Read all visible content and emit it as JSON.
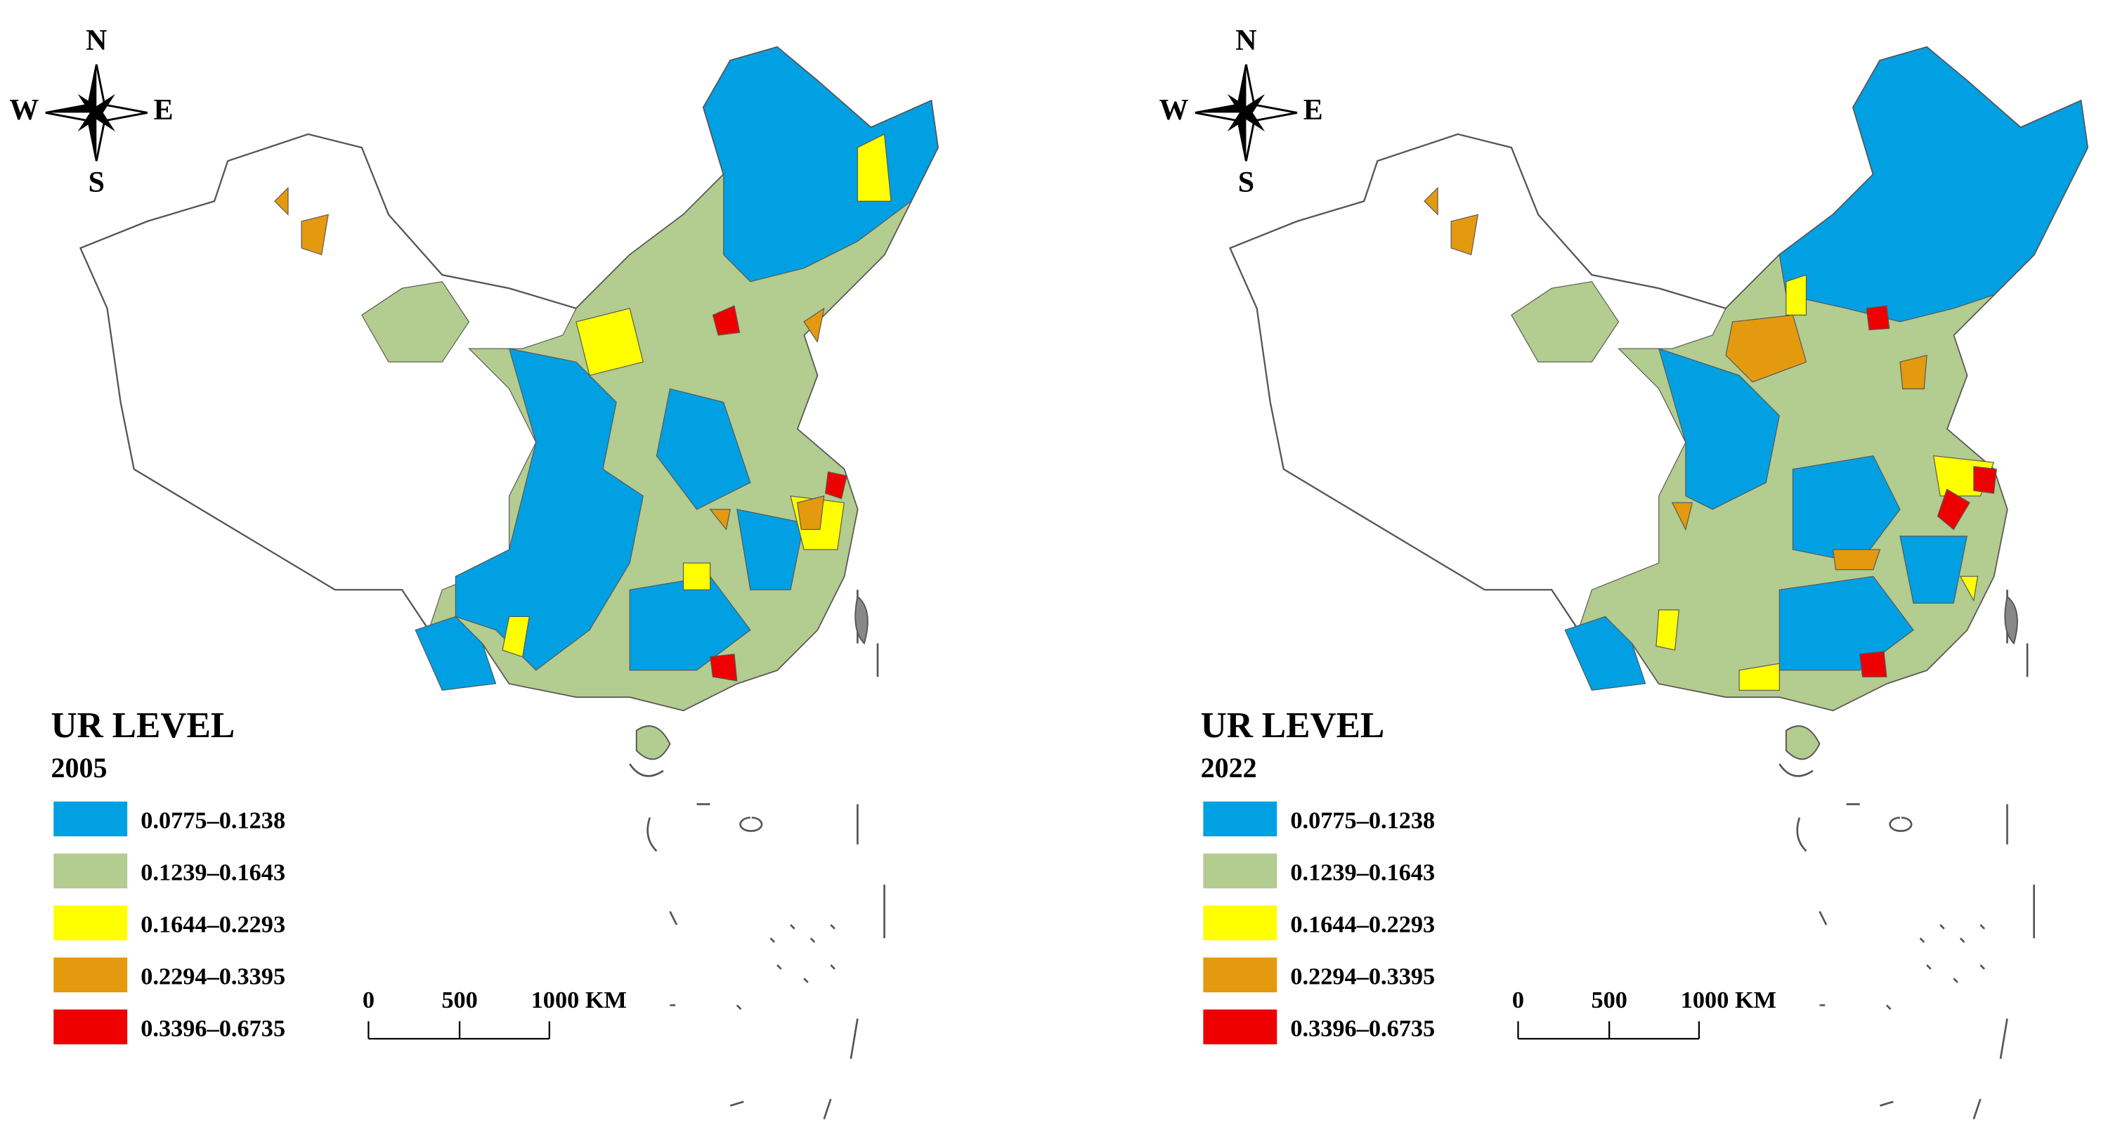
{
  "panels": [
    {
      "compass": {
        "n": "N",
        "s": "S",
        "e": "E",
        "w": "W"
      },
      "legend_title": "UR LEVEL",
      "year": "2005",
      "legend": [
        {
          "label": "0.0775–0.1238",
          "color": "#00a0e3"
        },
        {
          "label": "0.1239–0.1643",
          "color": "#b3cc8f"
        },
        {
          "label": "0.1644–0.2293",
          "color": "#ffff00"
        },
        {
          "label": "0.2294–0.3395",
          "color": "#e39a0f"
        },
        {
          "label": "0.3396–0.6735",
          "color": "#ef0000"
        }
      ],
      "scale_labels": [
        "0",
        "500",
        "1000 KM"
      ]
    },
    {
      "compass": {
        "n": "N",
        "s": "S",
        "e": "E",
        "w": "W"
      },
      "legend_title": "UR LEVEL",
      "year": "2022",
      "legend": [
        {
          "label": "0.0775–0.1238",
          "color": "#00a0e3"
        },
        {
          "label": "0.1239–0.1643",
          "color": "#b3cc8f"
        },
        {
          "label": "0.1644–0.2293",
          "color": "#ffff00"
        },
        {
          "label": "0.2294–0.3395",
          "color": "#e39a0f"
        },
        {
          "label": "0.3396–0.6735",
          "color": "#ef0000"
        }
      ],
      "scale_labels": [
        "0",
        "500",
        "1000 KM"
      ]
    }
  ]
}
